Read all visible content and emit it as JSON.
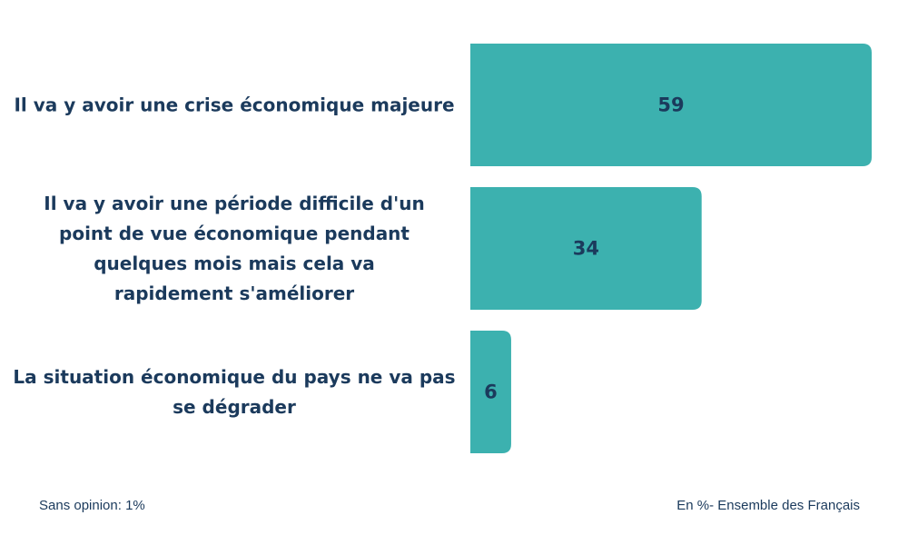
{
  "chart_data": {
    "type": "bar",
    "orientation": "horizontal",
    "categories": [
      "Il va y avoir une crise économique majeure",
      "Il va y avoir une période difficile d'un point de vue économique pendant quelques mois mais cela va rapidement s'améliorer",
      "La situation économique du pays ne va pas se dégrader"
    ],
    "category_lines": [
      [
        "Il va y avoir une crise économique majeure"
      ],
      [
        "Il va y avoir une période difficile d'un",
        "point de vue économique pendant",
        "quelques mois mais cela va",
        "rapidement s'améliorer"
      ],
      [
        "La situation économique du pays ne va pas",
        "se dégrader"
      ]
    ],
    "values": [
      59,
      34,
      6
    ],
    "data_labels": [
      "59",
      "34",
      "6"
    ],
    "bar_color": "#3cb1af",
    "label_color": "#1b3a5c",
    "grid": false
  },
  "footer": {
    "left_note": "Sans opinion: 1%",
    "right_note": "En %- Ensemble des Français"
  }
}
